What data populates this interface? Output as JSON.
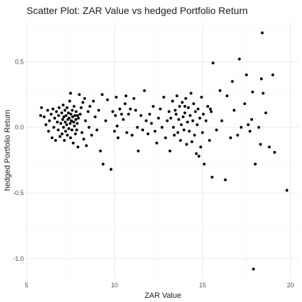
{
  "chart_data": {
    "type": "scatter",
    "title": "Scatter Plot: ZAR Value vs hedged Portfolio Return",
    "xlabel": "ZAR Value",
    "ylabel": "hedged Portfolio Return",
    "xlim": [
      5,
      20.5
    ],
    "ylim": [
      -1.15,
      0.8
    ],
    "xticks": [
      5,
      10,
      15,
      20
    ],
    "yticks": [
      -1.0,
      -0.5,
      0.0,
      0.5
    ],
    "xtick_labels": [
      "5",
      "10",
      "15",
      "20"
    ],
    "ytick_labels": [
      "-1.0",
      "-0.5",
      "0.0",
      "0.5"
    ],
    "grid": true,
    "point_color": "#000000",
    "points": [
      [
        5.8,
        0.09
      ],
      [
        5.85,
        0.15
      ],
      [
        6.0,
        0.08
      ],
      [
        6.1,
        0.02
      ],
      [
        6.2,
        0.13
      ],
      [
        6.25,
        -0.03
      ],
      [
        6.3,
        0.05
      ],
      [
        6.4,
        0.1
      ],
      [
        6.45,
        -0.08
      ],
      [
        6.5,
        0.14
      ],
      [
        6.55,
        0.0
      ],
      [
        6.6,
        0.07
      ],
      [
        6.65,
        -0.1
      ],
      [
        6.7,
        0.12
      ],
      [
        6.75,
        0.04
      ],
      [
        6.8,
        -0.02
      ],
      [
        6.82,
        0.09
      ],
      [
        6.85,
        0.15
      ],
      [
        6.9,
        -0.07
      ],
      [
        6.95,
        0.03
      ],
      [
        7.0,
        0.11
      ],
      [
        7.02,
        -0.05
      ],
      [
        7.05,
        0.06
      ],
      [
        7.08,
        0.17
      ],
      [
        7.1,
        0.0
      ],
      [
        7.12,
        0.08
      ],
      [
        7.15,
        -0.1
      ],
      [
        7.18,
        0.13
      ],
      [
        7.2,
        0.04
      ],
      [
        7.22,
        -0.03
      ],
      [
        7.25,
        0.09
      ],
      [
        7.28,
        0.02
      ],
      [
        7.3,
        0.15
      ],
      [
        7.32,
        -0.06
      ],
      [
        7.35,
        0.06
      ],
      [
        7.38,
        0.11
      ],
      [
        7.4,
        -0.01
      ],
      [
        7.42,
        0.07
      ],
      [
        7.45,
        0.2
      ],
      [
        7.48,
        0.03
      ],
      [
        7.5,
        -0.08
      ],
      [
        7.52,
        0.1
      ],
      [
        7.55,
        0.05
      ],
      [
        7.58,
        -0.02
      ],
      [
        7.6,
        0.13
      ],
      [
        7.62,
        0.08
      ],
      [
        7.65,
        -0.12
      ],
      [
        7.68,
        0.04
      ],
      [
        7.7,
        0.16
      ],
      [
        7.72,
        0.01
      ],
      [
        7.75,
        0.09
      ],
      [
        7.78,
        -0.05
      ],
      [
        7.8,
        0.06
      ],
      [
        7.82,
        0.12
      ],
      [
        7.85,
        -0.02
      ],
      [
        7.88,
        0.03
      ],
      [
        7.9,
        0.09
      ],
      [
        7.92,
        -0.15
      ],
      [
        7.95,
        0.07
      ],
      [
        8.0,
        0.25
      ],
      [
        7.5,
        0.26
      ],
      [
        8.05,
        0.1
      ],
      [
        8.1,
        0.15
      ],
      [
        8.15,
        -0.04
      ],
      [
        8.2,
        0.19
      ],
      [
        8.25,
        -0.09
      ],
      [
        8.3,
        0.22
      ],
      [
        8.35,
        0.05
      ],
      [
        8.4,
        -0.14
      ],
      [
        8.5,
        0.12
      ],
      [
        8.55,
        0.0
      ],
      [
        8.6,
        0.16
      ],
      [
        8.7,
        -0.06
      ],
      [
        8.8,
        0.2
      ],
      [
        8.9,
        0.08
      ],
      [
        9.0,
        -0.02
      ],
      [
        9.1,
        0.13
      ],
      [
        9.2,
        -0.18
      ],
      [
        9.3,
        0.25
      ],
      [
        9.35,
        -0.28
      ],
      [
        9.5,
        0.05
      ],
      [
        9.6,
        0.21
      ],
      [
        9.8,
        -0.32
      ],
      [
        9.9,
        0.12
      ],
      [
        10.0,
        -0.03
      ],
      [
        10.05,
        0.09
      ],
      [
        10.1,
        0.23
      ],
      [
        10.15,
        0.01
      ],
      [
        10.2,
        -0.08
      ],
      [
        10.3,
        0.14
      ],
      [
        10.4,
        0.1
      ],
      [
        10.5,
        0.06
      ],
      [
        10.6,
        0.18
      ],
      [
        10.65,
        0.24
      ],
      [
        10.7,
        -0.04
      ],
      [
        10.8,
        0.1
      ],
      [
        10.9,
        0.14
      ],
      [
        11.0,
        -0.06
      ],
      [
        11.1,
        0.22
      ],
      [
        11.2,
        0.13
      ],
      [
        11.3,
        0.0
      ],
      [
        11.35,
        -0.18
      ],
      [
        11.5,
        0.09
      ],
      [
        11.6,
        -0.02
      ],
      [
        11.7,
        0.28
      ],
      [
        11.8,
        0.05
      ],
      [
        11.9,
        -0.05
      ],
      [
        12.0,
        0.1
      ],
      [
        12.1,
        0.03
      ],
      [
        12.2,
        0.16
      ],
      [
        12.3,
        -0.03
      ],
      [
        12.4,
        -0.12
      ],
      [
        12.5,
        0.07
      ],
      [
        12.6,
        0.14
      ],
      [
        12.7,
        0.0
      ],
      [
        12.8,
        0.23
      ],
      [
        12.9,
        -0.08
      ],
      [
        13.0,
        0.05
      ],
      [
        13.1,
        0.12
      ],
      [
        13.15,
        -0.18
      ],
      [
        13.2,
        0.07
      ],
      [
        13.3,
        0.2
      ],
      [
        13.35,
        0.0
      ],
      [
        13.4,
        -0.06
      ],
      [
        13.45,
        0.13
      ],
      [
        13.5,
        0.1
      ],
      [
        13.55,
        0.24
      ],
      [
        13.6,
        -0.04
      ],
      [
        13.65,
        0.06
      ],
      [
        13.7,
        0.16
      ],
      [
        13.75,
        -0.1
      ],
      [
        13.8,
        0.02
      ],
      [
        13.85,
        0.19
      ],
      [
        13.9,
        0.08
      ],
      [
        13.95,
        -0.02
      ],
      [
        14.0,
        0.11
      ],
      [
        14.05,
        0.22
      ],
      [
        14.1,
        -0.13
      ],
      [
        14.15,
        0.04
      ],
      [
        14.2,
        0.15
      ],
      [
        14.25,
        -0.03
      ],
      [
        14.3,
        0.09
      ],
      [
        14.35,
        0.26
      ],
      [
        14.4,
        -0.11
      ],
      [
        14.45,
        0.05
      ],
      [
        14.5,
        0.18
      ],
      [
        14.55,
        -0.06
      ],
      [
        14.6,
        0.12
      ],
      [
        14.65,
        -0.2
      ],
      [
        14.7,
        0.02
      ],
      [
        14.75,
        0.14
      ],
      [
        14.8,
        -0.22
      ],
      [
        14.85,
        0.07
      ],
      [
        14.9,
        -0.15
      ],
      [
        14.95,
        0.23
      ],
      [
        15.0,
        -0.04
      ],
      [
        15.05,
        0.1
      ],
      [
        15.1,
        -0.28
      ],
      [
        15.2,
        0.05
      ],
      [
        15.3,
        0.16
      ],
      [
        15.4,
        -0.1
      ],
      [
        15.5,
        0.12
      ],
      [
        15.55,
        -0.38
      ],
      [
        15.6,
        0.49
      ],
      [
        15.8,
        -0.02
      ],
      [
        16.0,
        0.28
      ],
      [
        16.1,
        0.05
      ],
      [
        16.3,
        -0.4
      ],
      [
        16.4,
        0.24
      ],
      [
        16.6,
        -0.08
      ],
      [
        16.8,
        0.13
      ],
      [
        17.0,
        -0.06
      ],
      [
        17.1,
        0.52
      ],
      [
        17.2,
        0.0
      ],
      [
        17.4,
        0.18
      ],
      [
        17.5,
        0.4
      ],
      [
        17.6,
        0.02
      ],
      [
        17.7,
        -0.03
      ],
      [
        17.8,
        0.06
      ],
      [
        17.85,
        0.27
      ],
      [
        17.9,
        -1.08
      ],
      [
        18.0,
        -0.28
      ],
      [
        18.2,
        0.0
      ],
      [
        18.3,
        -0.13
      ],
      [
        18.35,
        0.37
      ],
      [
        18.4,
        0.72
      ],
      [
        18.45,
        0.26
      ],
      [
        18.6,
        0.11
      ],
      [
        19.0,
        0.4
      ],
      [
        19.1,
        -0.19
      ],
      [
        19.8,
        -0.48
      ],
      [
        18.8,
        -0.15
      ],
      [
        16.7,
        0.35
      ],
      [
        14.0,
        0.16
      ],
      [
        15.45,
        0.14
      ]
    ]
  }
}
